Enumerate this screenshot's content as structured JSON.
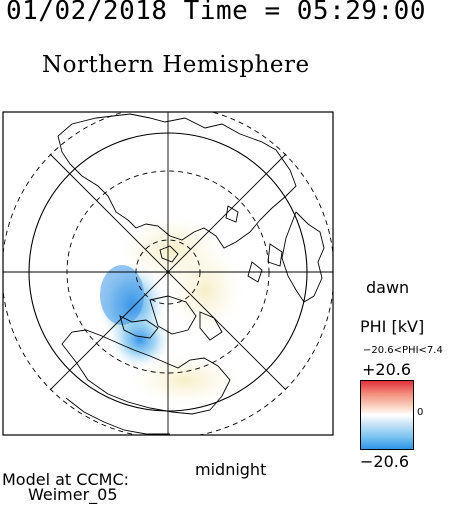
{
  "header": {
    "date_time": "01/02/2018 Time = 05:29:00"
  },
  "title": "Northern Hemisphere",
  "labels": {
    "dawn": "dawn",
    "midnight": "midnight"
  },
  "colorbar": {
    "title": "PHI [kV]",
    "range_text": "−20.6<PHI<7.4",
    "max_label": "+20.6",
    "min_label": "−20.6",
    "zero_label": "0",
    "colors": [
      "#e0303a",
      "#ffffff",
      "#2f95e8"
    ]
  },
  "credit": {
    "line1": "Model at CCMC:",
    "line2": "Weimer_05"
  }
}
